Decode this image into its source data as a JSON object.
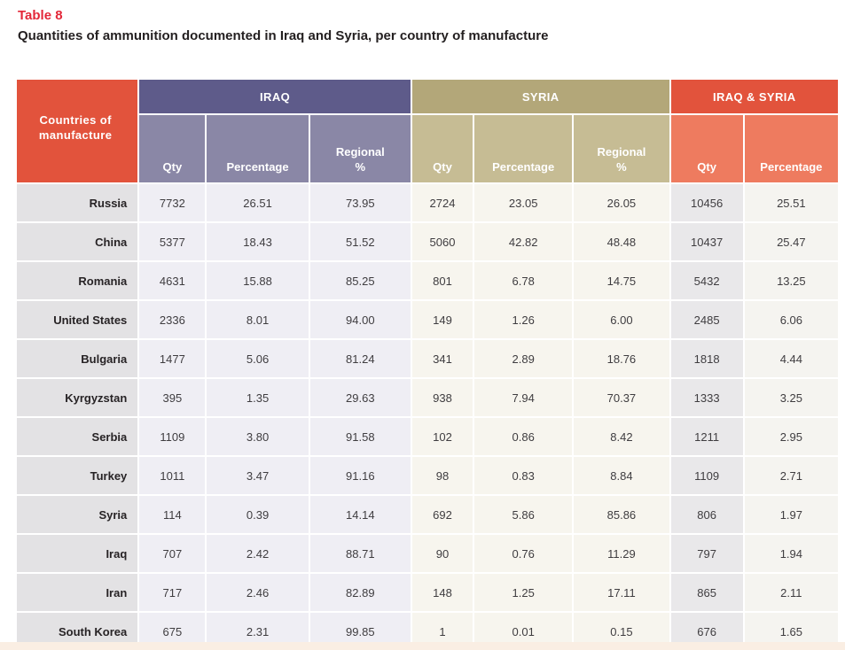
{
  "page": {
    "title": "Table 8",
    "subtitle": "Quantities of ammunition documented in Iraq and Syria, per country of manufacture"
  },
  "table": {
    "corner_header": "Countries of manufacture",
    "groups": [
      {
        "label": "IRAQ",
        "columns": [
          "Qty",
          "Percentage",
          "Regional\n%"
        ]
      },
      {
        "label": "SYRIA",
        "columns": [
          "Qty",
          "Percentage",
          "Regional\n%"
        ]
      },
      {
        "label": "IRAQ & SYRIA",
        "columns": [
          "Qty",
          "Percentage"
        ]
      }
    ],
    "rows": [
      {
        "country": "Russia",
        "values": [
          "7732",
          "26.51",
          "73.95",
          "2724",
          "23.05",
          "26.05",
          "10456",
          "25.51"
        ]
      },
      {
        "country": "China",
        "values": [
          "5377",
          "18.43",
          "51.52",
          "5060",
          "42.82",
          "48.48",
          "10437",
          "25.47"
        ]
      },
      {
        "country": "Romania",
        "values": [
          "4631",
          "15.88",
          "85.25",
          "801",
          "6.78",
          "14.75",
          "5432",
          "13.25"
        ]
      },
      {
        "country": "United States",
        "values": [
          "2336",
          "8.01",
          "94.00",
          "149",
          "1.26",
          "6.00",
          "2485",
          "6.06"
        ]
      },
      {
        "country": "Bulgaria",
        "values": [
          "1477",
          "5.06",
          "81.24",
          "341",
          "2.89",
          "18.76",
          "1818",
          "4.44"
        ]
      },
      {
        "country": "Kyrgyzstan",
        "values": [
          "395",
          "1.35",
          "29.63",
          "938",
          "7.94",
          "70.37",
          "1333",
          "3.25"
        ]
      },
      {
        "country": "Serbia",
        "values": [
          "1109",
          "3.80",
          "91.58",
          "102",
          "0.86",
          "8.42",
          "1211",
          "2.95"
        ]
      },
      {
        "country": "Turkey",
        "values": [
          "1011",
          "3.47",
          "91.16",
          "98",
          "0.83",
          "8.84",
          "1109",
          "2.71"
        ]
      },
      {
        "country": "Syria",
        "values": [
          "114",
          "0.39",
          "14.14",
          "692",
          "5.86",
          "85.86",
          "806",
          "1.97"
        ]
      },
      {
        "country": "Iraq",
        "values": [
          "707",
          "2.42",
          "88.71",
          "90",
          "0.76",
          "11.29",
          "797",
          "1.94"
        ]
      },
      {
        "country": "Iran",
        "values": [
          "717",
          "2.46",
          "82.89",
          "148",
          "1.25",
          "17.11",
          "865",
          "2.11"
        ]
      },
      {
        "country": "South Korea",
        "values": [
          "675",
          "2.31",
          "99.85",
          "1",
          "0.01",
          "0.15",
          "676",
          "1.65"
        ]
      }
    ]
  },
  "colors": {
    "title_red": "#e32638",
    "header_vermilion": "#e2533c",
    "iraq_dark": "#5e5b8a",
    "iraq_light": "#8a87a6",
    "syria_dark": "#b3a779",
    "syria_light": "#c6bc94",
    "combined_light": "#ee7b5f",
    "country_cell": "#e3e2e4",
    "iraq_cell": "#efeef4",
    "syria_cell": "#f7f5ee",
    "combined_qty_cell": "#e9e8ea",
    "combined_pct_cell": "#f5f4f0",
    "footer_strip": "#faeee3"
  }
}
